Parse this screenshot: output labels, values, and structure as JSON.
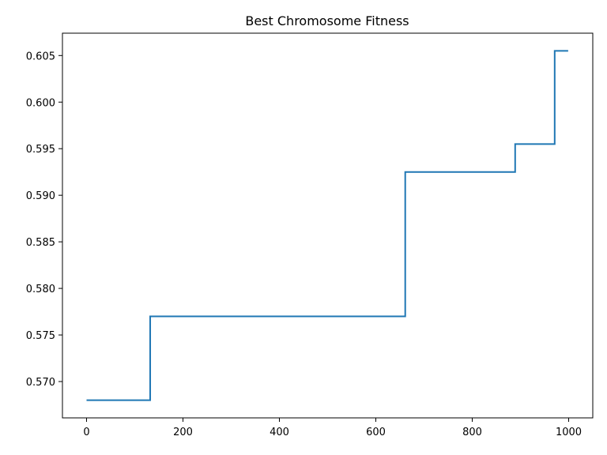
{
  "chart_data": {
    "type": "line",
    "title": "Best Chromosome Fitness",
    "xlabel": "",
    "ylabel": "",
    "xlim": [
      -50,
      1050
    ],
    "ylim": [
      0.5661,
      0.6074
    ],
    "xticks": [
      0,
      200,
      400,
      600,
      800,
      1000
    ],
    "xtick_labels": [
      "0",
      "200",
      "400",
      "600",
      "800",
      "1000"
    ],
    "yticks": [
      0.57,
      0.575,
      0.58,
      0.585,
      0.59,
      0.595,
      0.6,
      0.605
    ],
    "ytick_labels": [
      "0.570",
      "0.575",
      "0.580",
      "0.585",
      "0.590",
      "0.595",
      "0.600",
      "0.605"
    ],
    "grid": false,
    "color": "#1f77b4",
    "series": [
      {
        "x": [
          0,
          132,
          132,
          661,
          661,
          889,
          889,
          971,
          971,
          999
        ],
        "y": [
          0.568,
          0.568,
          0.577,
          0.577,
          0.5925,
          0.5925,
          0.5955,
          0.5955,
          0.6055,
          0.6055
        ]
      }
    ]
  }
}
